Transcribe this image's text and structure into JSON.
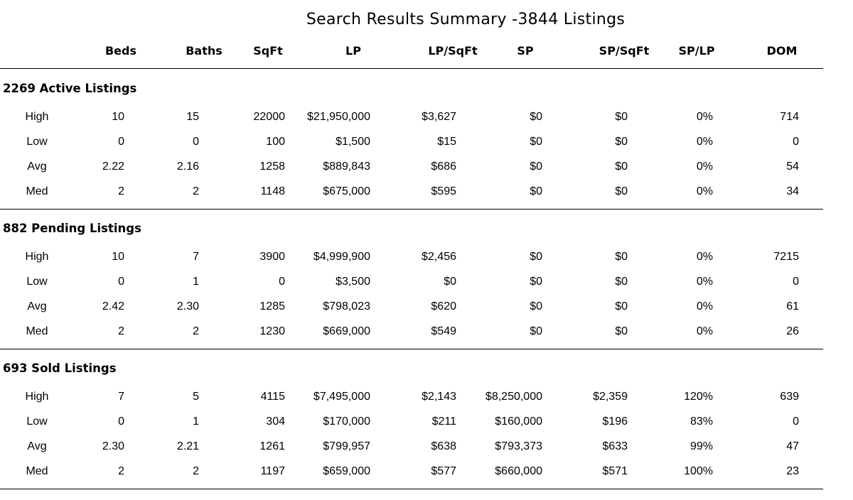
{
  "title": "Search Results Summary -3844 Listings",
  "columns": [
    "Beds",
    "Baths",
    "SqFt",
    "LP",
    "LP/SqFt",
    "SP",
    "SP/SqFt",
    "SP/LP",
    "DOM"
  ],
  "sections": [
    {
      "title": "2269 Active Listings",
      "rows": [
        {
          "label": "High",
          "values": [
            "10",
            "15",
            "22000",
            "$21,950,000",
            "$3,627",
            "$0",
            "$0",
            "0%",
            "714"
          ]
        },
        {
          "label": "Low",
          "values": [
            "0",
            "0",
            "100",
            "$1,500",
            "$15",
            "$0",
            "$0",
            "0%",
            "0"
          ]
        },
        {
          "label": "Avg",
          "values": [
            "2.22",
            "2.16",
            "1258",
            "$889,843",
            "$686",
            "$0",
            "$0",
            "0%",
            "54"
          ]
        },
        {
          "label": "Med",
          "values": [
            "2",
            "2",
            "1148",
            "$675,000",
            "$595",
            "$0",
            "$0",
            "0%",
            "34"
          ]
        }
      ]
    },
    {
      "title": "882 Pending Listings",
      "rows": [
        {
          "label": "High",
          "values": [
            "10",
            "7",
            "3900",
            "$4,999,900",
            "$2,456",
            "$0",
            "$0",
            "0%",
            "7215"
          ]
        },
        {
          "label": "Low",
          "values": [
            "0",
            "1",
            "0",
            "$3,500",
            "$0",
            "$0",
            "$0",
            "0%",
            "0"
          ]
        },
        {
          "label": "Avg",
          "values": [
            "2.42",
            "2.30",
            "1285",
            "$798,023",
            "$620",
            "$0",
            "$0",
            "0%",
            "61"
          ]
        },
        {
          "label": "Med",
          "values": [
            "2",
            "2",
            "1230",
            "$669,000",
            "$549",
            "$0",
            "$0",
            "0%",
            "26"
          ]
        }
      ]
    },
    {
      "title": "693 Sold Listings",
      "rows": [
        {
          "label": "High",
          "values": [
            "7",
            "5",
            "4115",
            "$7,495,000",
            "$2,143",
            "$8,250,000",
            "$2,359",
            "120%",
            "639"
          ]
        },
        {
          "label": "Low",
          "values": [
            "0",
            "1",
            "304",
            "$170,000",
            "$211",
            "$160,000",
            "$196",
            "83%",
            "0"
          ]
        },
        {
          "label": "Avg",
          "values": [
            "2.30",
            "2.21",
            "1261",
            "$799,957",
            "$638",
            "$793,373",
            "$633",
            "99%",
            "47"
          ]
        },
        {
          "label": "Med",
          "values": [
            "2",
            "2",
            "1197",
            "$659,000",
            "$577",
            "$660,000",
            "$571",
            "100%",
            "23"
          ]
        }
      ]
    }
  ]
}
